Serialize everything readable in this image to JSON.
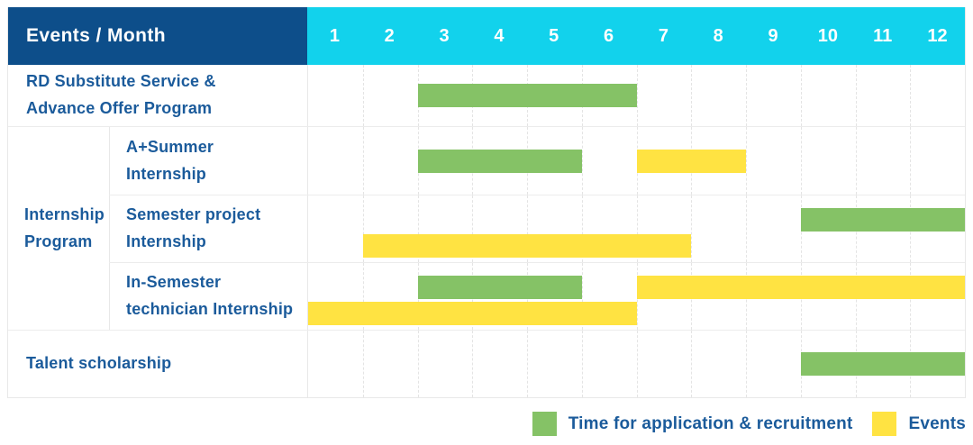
{
  "chart_data": {
    "type": "bar",
    "subtype": "gantt-schedule",
    "title": "Events / Month",
    "x_axis": {
      "label": "Month",
      "range": [
        1,
        12
      ]
    },
    "months": [
      "1",
      "2",
      "3",
      "4",
      "5",
      "6",
      "7",
      "8",
      "9",
      "10",
      "11",
      "12"
    ],
    "group_label": "Internship Program",
    "group_label_lines": [
      "Internship",
      "Program"
    ],
    "rows": [
      {
        "label": "RD Substitute Service & Advance Offer Program",
        "label_lines": [
          "RD Substitute Service &",
          "Advance Offer Program"
        ],
        "group": "",
        "bars": [
          {
            "series": "Time for application & recruitment",
            "color": "#85c266",
            "start_month": 3,
            "end_month": 6,
            "lane": "center"
          }
        ]
      },
      {
        "label": "A+Summer Internship",
        "label_lines": [
          "A+Summer",
          "Internship"
        ],
        "group": "Internship Program",
        "bars": [
          {
            "series": "Time for application & recruitment",
            "color": "#85c266",
            "start_month": 3,
            "end_month": 5,
            "lane": "center"
          },
          {
            "series": "Events",
            "color": "#ffe342",
            "start_month": 7,
            "end_month": 8,
            "lane": "center"
          }
        ]
      },
      {
        "label": "Semester project Internship",
        "label_lines": [
          "Semester project",
          "Internship"
        ],
        "group": "Internship Program",
        "bars": [
          {
            "series": "Time for application & recruitment",
            "color": "#85c266",
            "start_month": 10,
            "end_month": 12,
            "lane": "top"
          },
          {
            "series": "Events",
            "color": "#ffe342",
            "start_month": 2,
            "end_month": 7,
            "lane": "bottom"
          }
        ]
      },
      {
        "label": "In-Semester technician Internship",
        "label_lines": [
          "In-Semester",
          "technician Internship"
        ],
        "group": "Internship Program",
        "bars": [
          {
            "series": "Time for application & recruitment",
            "color": "#85c266",
            "start_month": 3,
            "end_month": 5,
            "lane": "top"
          },
          {
            "series": "Events",
            "color": "#ffe342",
            "start_month": 7,
            "end_month": 12,
            "lane": "top"
          },
          {
            "series": "Events",
            "color": "#ffe342",
            "start_month": 1,
            "end_month": 6,
            "lane": "bottom"
          }
        ]
      },
      {
        "label": "Talent scholarship",
        "label_lines": [
          "Talent scholarship"
        ],
        "group": "",
        "bars": [
          {
            "series": "Time for application & recruitment",
            "color": "#85c266",
            "start_month": 10,
            "end_month": 12,
            "lane": "center"
          }
        ]
      }
    ],
    "legend": [
      {
        "label": "Time for application & recruitment",
        "color": "#85c266"
      },
      {
        "label": "Events",
        "color": "#ffe342"
      }
    ],
    "legend_position": "bottom-right",
    "grid": true
  },
  "colors": {
    "header_bg": "#0d4e8a",
    "months_header_bg": "#12d2ec",
    "header_text": "#ffffff",
    "label_text": "#1b5b9b",
    "grid_line": "#e8e8e8",
    "bar_green": "#85c266",
    "bar_yellow": "#ffe342"
  }
}
